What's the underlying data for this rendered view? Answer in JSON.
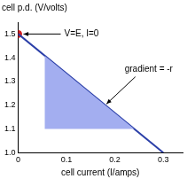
{
  "chart_data": {
    "type": "line",
    "xlabel": "cell current (I/amps)",
    "ylabel": "cell p.d. (V/volts)",
    "x": [
      0,
      0.3
    ],
    "values": [
      1.5,
      1.0
    ],
    "color": "#2b3fa8",
    "marker_point": {
      "x": 0,
      "y": 1.5,
      "color": "#d42020"
    },
    "shaded_region": {
      "x": [
        0.055,
        0.055,
        0.24
      ],
      "y": [
        1.408,
        1.1,
        1.1
      ],
      "color": "#a3aef0"
    },
    "annotations": [
      {
        "text": "V=E, I=0",
        "x": 0,
        "y": 1.5
      },
      {
        "text": "gradient = -r",
        "x": 0.18,
        "y": 1.2
      }
    ],
    "xlim": [
      0,
      0.34
    ],
    "ylim": [
      1.0,
      1.55
    ],
    "xticks": [
      0,
      0.1,
      0.2,
      0.3
    ],
    "yticks": [
      {
        "value": 1,
        "label": "1.0"
      },
      1.1,
      1.2,
      1.3,
      1.4,
      1.5
    ],
    "grid": false
  }
}
